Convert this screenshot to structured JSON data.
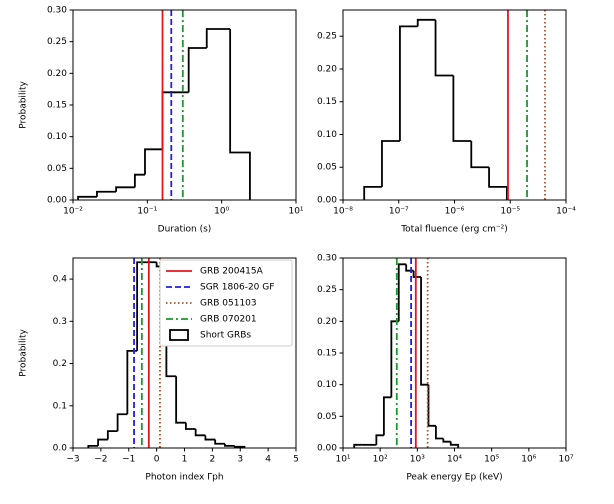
{
  "chart_data": [
    {
      "type": "histogram",
      "xlabel": "Duration (s)",
      "ylabel": "Probability",
      "xscale": "log",
      "xlim": [
        0.01,
        10
      ],
      "xticks": [
        {
          "value": 0.01,
          "label": "10⁻²"
        },
        {
          "value": 0.1,
          "label": "10⁻¹"
        },
        {
          "value": 1,
          "label": "10⁰"
        },
        {
          "value": 10,
          "label": "10¹"
        }
      ],
      "ylim": [
        0,
        0.3
      ],
      "yticks": [
        {
          "value": 0,
          "label": "0.00"
        },
        {
          "value": 0.05,
          "label": "0.05"
        },
        {
          "value": 0.1,
          "label": "0.10"
        },
        {
          "value": 0.15,
          "label": "0.15"
        },
        {
          "value": 0.2,
          "label": "0.20"
        },
        {
          "value": 0.25,
          "label": "0.25"
        },
        {
          "value": 0.3,
          "label": "0.30"
        }
      ],
      "color": "#000000",
      "bins": [
        0.0117,
        0.021,
        0.038,
        0.068,
        0.093,
        0.16,
        0.36,
        0.63,
        1.3,
        2.4
      ],
      "values": [
        0.005,
        0.013,
        0.02,
        0.04,
        0.08,
        0.17,
        0.24,
        0.27,
        0.075
      ],
      "lines": [
        0.16,
        0.21,
        null,
        0.3
      ]
    },
    {
      "type": "histogram",
      "xlabel": "Total fluence (erg cm⁻²)",
      "xscale": "log",
      "xlim": [
        1e-08,
        0.0001
      ],
      "xticks": [
        {
          "value": 1e-08,
          "label": "10⁻⁸"
        },
        {
          "value": 1e-07,
          "label": "10⁻⁷"
        },
        {
          "value": 1e-06,
          "label": "10⁻⁶"
        },
        {
          "value": 1e-05,
          "label": "10⁻⁵"
        },
        {
          "value": 0.0001,
          "label": "10⁻⁴"
        }
      ],
      "ylim": [
        0,
        0.29
      ],
      "yticks": [
        {
          "value": 0,
          "label": "0.00"
        },
        {
          "value": 0.05,
          "label": "0.05"
        },
        {
          "value": 0.1,
          "label": "0.10"
        },
        {
          "value": 0.15,
          "label": "0.15"
        },
        {
          "value": 0.2,
          "label": "0.20"
        },
        {
          "value": 0.25,
          "label": "0.25"
        }
      ],
      "color": "#000000",
      "bins": [
        2.4e-08,
        5e-08,
        1.05e-07,
        2.19e-07,
        4.57e-07,
        9.55e-07,
        2e-06,
        4.17e-06,
        8.7e-06
      ],
      "values": [
        0.02,
        0.09,
        0.265,
        0.275,
        0.19,
        0.09,
        0.05,
        0.02
      ],
      "lines": [
        9.1e-06,
        null,
        4.2e-05,
        2e-05
      ]
    },
    {
      "type": "histogram",
      "xlabel": "Photon index Γph",
      "ylabel": "Probability",
      "xscale": "linear",
      "xlim": [
        -3,
        5
      ],
      "xticks": [
        {
          "value": -3,
          "label": "−3"
        },
        {
          "value": -2,
          "label": "−2"
        },
        {
          "value": -1,
          "label": "−1"
        },
        0,
        1,
        2,
        3,
        4,
        5
      ],
      "ylim": [
        0,
        0.45
      ],
      "yticks": [
        {
          "value": 0,
          "label": "0.0"
        },
        {
          "value": 0.1,
          "label": "0.1"
        },
        {
          "value": 0.2,
          "label": "0.2"
        },
        {
          "value": 0.3,
          "label": "0.3"
        },
        {
          "value": 0.4,
          "label": "0.4"
        }
      ],
      "color": "#000000",
      "bins": [
        -2.45,
        -2.1,
        -1.75,
        -1.4,
        -1.05,
        -0.7,
        -0.35,
        0,
        0.35,
        0.7,
        1.05,
        1.4,
        1.75,
        2.1,
        2.45,
        2.8,
        3.15
      ],
      "values": [
        0.005,
        0.02,
        0.04,
        0.08,
        0.23,
        0.44,
        0.44,
        0.43,
        0.17,
        0.06,
        0.045,
        0.03,
        0.02,
        0.01,
        0.005,
        0.003
      ],
      "lines": [
        -0.28,
        -0.81,
        0.12,
        -0.53
      ],
      "legend": {
        "entries": [
          {
            "name": "GRB 200415A",
            "color": "#e8141c",
            "dash": "solid"
          },
          {
            "name": "SGR 1806-20 GF",
            "color": "#1f1fe0",
            "dash": "dashed"
          },
          {
            "name": "GRB 051103",
            "color": "#a0522d",
            "dash": "dotted"
          },
          {
            "name": "GRB 070201",
            "color": "#1a9a2a",
            "dash": "dashdot"
          }
        ],
        "histogram": "Short GRBs"
      }
    },
    {
      "type": "histogram",
      "xlabel": "Peak energy Ep (keV)",
      "xscale": "log",
      "xlim": [
        10,
        10000000.0
      ],
      "xticks": [
        {
          "value": 10,
          "label": "10¹"
        },
        {
          "value": 100,
          "label": "10²"
        },
        {
          "value": 1000,
          "label": "10³"
        },
        {
          "value": 10000.0,
          "label": "10⁴"
        },
        {
          "value": 100000.0,
          "label": "10⁵"
        },
        {
          "value": 1000000.0,
          "label": "10⁶"
        },
        {
          "value": 10000000.0,
          "label": "10⁷"
        }
      ],
      "ylim": [
        0,
        0.3
      ],
      "yticks": [
        {
          "value": 0,
          "label": "0.00"
        },
        {
          "value": 0.05,
          "label": "0.05"
        },
        {
          "value": 0.1,
          "label": "0.10"
        },
        {
          "value": 0.15,
          "label": "0.15"
        },
        {
          "value": 0.2,
          "label": "0.20"
        },
        {
          "value": 0.25,
          "label": "0.25"
        },
        {
          "value": 0.3,
          "label": "0.30"
        }
      ],
      "color": "#000000",
      "bins": [
        20,
        32,
        50,
        79,
        126,
        200,
        316,
        501,
        794,
        1259,
        1995,
        3162,
        5012,
        7943,
        12589
      ],
      "values": [
        0.005,
        0.005,
        0.005,
        0.02,
        0.08,
        0.2,
        0.29,
        0.28,
        0.27,
        0.1,
        0.035,
        0.015,
        0.01,
        0.005
      ],
      "lines": [
        910,
        680,
        1900,
        280
      ]
    }
  ]
}
